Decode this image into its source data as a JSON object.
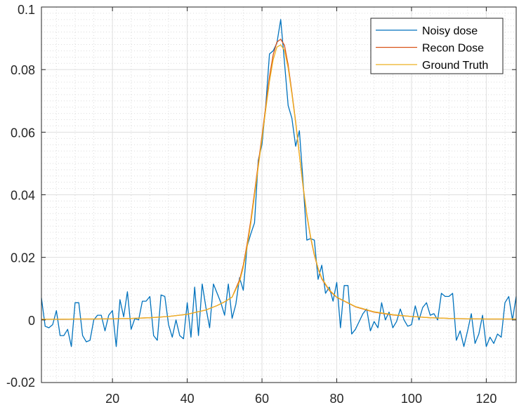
{
  "chart_data": {
    "type": "line",
    "xlim": [
      1,
      128
    ],
    "ylim": [
      -0.02,
      0.1
    ],
    "x_ticks": [
      20,
      40,
      60,
      80,
      100,
      120
    ],
    "y_ticks": [
      -0.02,
      0,
      0.02,
      0.04,
      0.06,
      0.08,
      0.1
    ],
    "x_tick_labels": [
      "20",
      "40",
      "60",
      "80",
      "100",
      "120"
    ],
    "y_tick_labels": [
      "-0.02",
      "0",
      "0.02",
      "0.04",
      "0.06",
      "0.08",
      "0.1"
    ],
    "grid": true,
    "minor_grid": true,
    "legend_position": "top-right",
    "series": [
      {
        "name": "Noisy dose",
        "color": "#0072BD",
        "x": [
          1,
          2,
          3,
          4,
          5,
          6,
          7,
          8,
          9,
          10,
          11,
          12,
          13,
          14,
          15,
          16,
          17,
          18,
          19,
          20,
          21,
          22,
          23,
          24,
          25,
          26,
          27,
          28,
          29,
          30,
          31,
          32,
          33,
          34,
          35,
          36,
          37,
          38,
          39,
          40,
          41,
          42,
          43,
          44,
          45,
          46,
          47,
          48,
          49,
          50,
          51,
          52,
          53,
          54,
          55,
          56,
          57,
          58,
          59,
          60,
          61,
          62,
          63,
          64,
          65,
          66,
          67,
          68,
          69,
          70,
          71,
          72,
          73,
          74,
          75,
          76,
          77,
          78,
          79,
          80,
          81,
          82,
          83,
          84,
          85,
          86,
          87,
          88,
          89,
          90,
          91,
          92,
          93,
          94,
          95,
          96,
          97,
          98,
          99,
          100,
          101,
          102,
          103,
          104,
          105,
          106,
          107,
          108,
          109,
          110,
          111,
          112,
          113,
          114,
          115,
          116,
          117,
          118,
          119,
          120,
          121,
          122,
          123,
          124,
          125,
          126,
          127,
          128
        ],
        "values": [
          0.007,
          -0.002,
          -0.0025,
          -0.0015,
          0.003,
          -0.005,
          -0.005,
          -0.003,
          -0.0085,
          0.0055,
          0.0055,
          -0.005,
          -0.007,
          -0.0065,
          0.0,
          0.0015,
          0.0015,
          -0.0035,
          0.0015,
          0.003,
          -0.0085,
          0.0065,
          0.001,
          0.009,
          -0.003,
          0.0005,
          0.0,
          0.006,
          0.006,
          0.0075,
          -0.005,
          -0.0065,
          0.008,
          0.0075,
          -0.0015,
          -0.0055,
          0.0,
          -0.005,
          -0.006,
          0.0055,
          -0.0055,
          0.0105,
          -0.005,
          0.0115,
          0.004,
          -0.0025,
          0.0115,
          0.0085,
          0.0055,
          0.0015,
          0.0115,
          0.0005,
          0.005,
          0.0135,
          0.0095,
          0.0235,
          0.0275,
          0.031,
          0.051,
          0.056,
          0.0685,
          0.085,
          0.086,
          0.0885,
          0.096,
          0.0825,
          0.0685,
          0.0645,
          0.0555,
          0.0605,
          0.044,
          0.0255,
          0.026,
          0.0255,
          0.013,
          0.0175,
          0.0085,
          0.0105,
          0.006,
          0.012,
          -0.0025,
          0.011,
          0.011,
          -0.0045,
          -0.003,
          -0.0005,
          0.002,
          0.0035,
          -0.0035,
          -0.0005,
          -0.0025,
          0.0055,
          0.0,
          0.0025,
          -0.0025,
          -0.0005,
          0.0035,
          0.0,
          -0.002,
          -0.0015,
          0.0045,
          0.0,
          0.004,
          0.0055,
          0.0015,
          0.002,
          0.0,
          0.0085,
          0.0075,
          0.0075,
          0.0085,
          -0.0065,
          -0.0035,
          -0.0085,
          -0.0035,
          0.002,
          -0.0075,
          -0.0045,
          0.0015,
          -0.0085,
          -0.0055,
          -0.0075,
          -0.0045,
          -0.0055,
          0.0055,
          0.0075,
          0.0,
          0.0075
        ]
      },
      {
        "name": "Recon Dose",
        "color": "#D95319",
        "x": [
          1,
          5,
          10,
          15,
          20,
          25,
          30,
          35,
          40,
          45,
          48,
          50,
          52,
          54,
          55,
          56,
          57,
          58,
          59,
          60,
          61,
          62,
          63,
          64,
          65,
          66,
          67,
          68,
          69,
          70,
          71,
          72,
          73,
          74,
          75,
          76,
          78,
          80,
          85,
          90,
          95,
          100,
          105,
          110,
          115,
          120,
          125,
          128
        ],
        "values": [
          0.0002,
          0.0002,
          0.0003,
          0.0003,
          0.0004,
          0.0005,
          0.0007,
          0.0011,
          0.0018,
          0.0032,
          0.0046,
          0.0058,
          0.0073,
          0.0128,
          0.0175,
          0.0242,
          0.0318,
          0.0407,
          0.0498,
          0.0588,
          0.0682,
          0.0777,
          0.0848,
          0.0888,
          0.0897,
          0.0878,
          0.0815,
          0.0728,
          0.0633,
          0.0528,
          0.0425,
          0.0335,
          0.0264,
          0.0207,
          0.0164,
          0.0131,
          0.0094,
          0.0072,
          0.0042,
          0.0025,
          0.0016,
          0.0011,
          0.0007,
          0.0005,
          0.0004,
          0.0003,
          0.0003,
          0.0003
        ]
      },
      {
        "name": "Ground Truth",
        "color": "#EDB120",
        "x": [
          1,
          5,
          10,
          15,
          20,
          25,
          30,
          35,
          40,
          45,
          48,
          50,
          52,
          54,
          55,
          56,
          57,
          58,
          59,
          60,
          61,
          62,
          63,
          64,
          65,
          66,
          67,
          68,
          69,
          70,
          71,
          72,
          73,
          74,
          75,
          76,
          78,
          80,
          85,
          90,
          95,
          100,
          105,
          110,
          115,
          120,
          125,
          128
        ],
        "values": [
          0.0002,
          0.0002,
          0.0003,
          0.0003,
          0.0004,
          0.0005,
          0.0007,
          0.0011,
          0.0018,
          0.0032,
          0.0046,
          0.0058,
          0.0073,
          0.0122,
          0.0168,
          0.0232,
          0.0308,
          0.0397,
          0.0488,
          0.0578,
          0.0672,
          0.0762,
          0.0832,
          0.0872,
          0.0879,
          0.0862,
          0.0805,
          0.0722,
          0.063,
          0.0528,
          0.0428,
          0.0338,
          0.0267,
          0.021,
          0.0166,
          0.0133,
          0.0096,
          0.0073,
          0.0043,
          0.0026,
          0.0017,
          0.0011,
          0.0007,
          0.0005,
          0.0004,
          0.0003,
          0.0003,
          0.0003
        ]
      }
    ]
  }
}
